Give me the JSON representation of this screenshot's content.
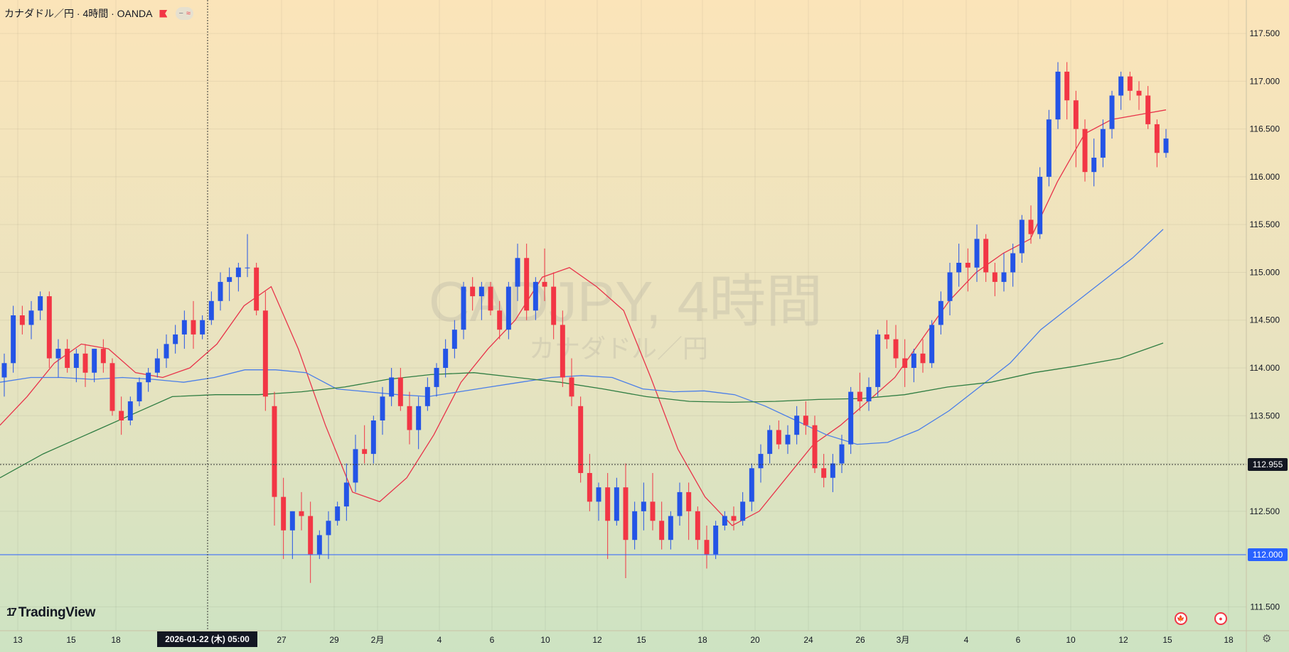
{
  "legend": {
    "title": "カナダドル／円 · 4時間 · OANDA",
    "pill_minus": "−",
    "pill_wave": "≈"
  },
  "watermark": {
    "symbol": "CADJPY, 4時間",
    "name": "カナダドル／円"
  },
  "logo": {
    "mark": "17",
    "text": "TradingView"
  },
  "crosshair": {
    "time_label": "2026-01-22 (木)   05:00",
    "price": "112.955"
  },
  "hline": {
    "price": "112.000",
    "color": "#2962ff"
  },
  "bottom_icons": {
    "canada": "🍁",
    "record": "●"
  },
  "gear_icon": "⚙",
  "colors": {
    "up": "#2454e6",
    "down": "#f23645",
    "ma_fast": "#e8334a",
    "ma_mid": "#4a7ee8",
    "ma_slow": "#2f7d42",
    "bg_top": "#fbe4b9",
    "bg_bottom": "#cde3c2"
  },
  "chart_data": {
    "type": "candlestick",
    "x_tick_labels": [
      "13",
      "15",
      "18",
      "27",
      "29",
      "2月",
      "4",
      "6",
      "10",
      "12",
      "15",
      "18",
      "20",
      "24",
      "26",
      "3月",
      "4",
      "6",
      "10",
      "12",
      "15",
      "18"
    ],
    "y_ticks": [
      "111.500",
      "112.500",
      "113.000",
      "113.500",
      "114.000",
      "114.500",
      "115.000",
      "115.500",
      "116.000",
      "116.500",
      "117.000",
      "117.500"
    ],
    "y_range": [
      111.25,
      117.85
    ],
    "series": [
      {
        "name": "MA fast",
        "color": "#e8334a",
        "values": [
          113.4,
          113.7,
          114.05,
          114.25,
          114.2,
          113.95,
          113.9,
          114.0,
          114.25,
          114.65,
          114.85,
          114.2,
          113.4,
          112.7,
          112.6,
          112.85,
          113.3,
          113.85,
          114.2,
          114.5,
          114.95,
          115.05,
          114.85,
          114.6,
          113.9,
          113.15,
          112.65,
          112.35,
          112.5,
          112.85,
          113.2,
          113.4,
          113.65,
          113.9,
          114.3,
          114.7,
          115.0,
          115.2,
          115.35,
          115.95,
          116.45,
          116.6,
          116.65,
          116.7
        ]
      },
      {
        "name": "MA mid",
        "color": "#4a7ee8",
        "values": [
          113.85,
          113.9,
          113.9,
          113.88,
          113.9,
          113.88,
          113.85,
          113.9,
          113.98,
          113.98,
          113.95,
          113.78,
          113.75,
          113.72,
          113.7,
          113.75,
          113.8,
          113.85,
          113.9,
          113.92,
          113.9,
          113.78,
          113.75,
          113.76,
          113.72,
          113.6,
          113.45,
          113.3,
          113.2,
          113.22,
          113.35,
          113.55,
          113.8,
          114.05,
          114.4,
          114.65,
          114.9,
          115.15,
          115.45
        ]
      },
      {
        "name": "MA slow",
        "color": "#2f7d42",
        "values": [
          112.85,
          113.1,
          113.3,
          113.5,
          113.7,
          113.72,
          113.72,
          113.75,
          113.8,
          113.88,
          113.93,
          113.95,
          113.9,
          113.85,
          113.78,
          113.7,
          113.65,
          113.64,
          113.65,
          113.67,
          113.68,
          113.72,
          113.8,
          113.85,
          113.95,
          114.02,
          114.1,
          114.26
        ]
      }
    ],
    "candles": [
      [
        113.9,
        114.15,
        113.7,
        114.05
      ],
      [
        114.05,
        114.65,
        113.95,
        114.55
      ],
      [
        114.55,
        114.65,
        114.35,
        114.45
      ],
      [
        114.45,
        114.7,
        114.3,
        114.6
      ],
      [
        114.6,
        114.8,
        114.5,
        114.75
      ],
      [
        114.75,
        114.8,
        114.0,
        114.1
      ],
      [
        114.1,
        114.3,
        113.9,
        114.2
      ],
      [
        114.2,
        114.3,
        113.95,
        114.0
      ],
      [
        114.0,
        114.2,
        113.85,
        114.15
      ],
      [
        114.15,
        114.25,
        113.8,
        113.95
      ],
      [
        113.95,
        114.2,
        113.85,
        114.2
      ],
      [
        114.2,
        114.3,
        113.95,
        114.05
      ],
      [
        114.05,
        114.1,
        113.5,
        113.55
      ],
      [
        113.55,
        113.7,
        113.3,
        113.45
      ],
      [
        113.45,
        113.7,
        113.4,
        113.65
      ],
      [
        113.65,
        113.9,
        113.6,
        113.85
      ],
      [
        113.85,
        114.0,
        113.75,
        113.95
      ],
      [
        113.95,
        114.2,
        113.9,
        114.1
      ],
      [
        114.1,
        114.35,
        114.0,
        114.25
      ],
      [
        114.25,
        114.45,
        114.15,
        114.35
      ],
      [
        114.35,
        114.6,
        114.2,
        114.5
      ],
      [
        114.5,
        114.7,
        114.2,
        114.35
      ],
      [
        114.35,
        114.55,
        114.3,
        114.5
      ],
      [
        114.5,
        114.8,
        114.45,
        114.7
      ],
      [
        114.7,
        115.0,
        114.6,
        114.9
      ],
      [
        114.9,
        115.05,
        114.7,
        114.95
      ],
      [
        114.95,
        115.1,
        114.8,
        115.05
      ],
      [
        115.05,
        115.4,
        114.95,
        115.05
      ],
      [
        115.05,
        115.1,
        114.55,
        114.6
      ],
      [
        114.6,
        114.8,
        113.55,
        113.7
      ],
      [
        113.6,
        113.75,
        112.35,
        112.65
      ],
      [
        112.65,
        112.85,
        112.0,
        112.3
      ],
      [
        112.3,
        112.5,
        112.0,
        112.5
      ],
      [
        112.5,
        112.7,
        112.3,
        112.45
      ],
      [
        112.45,
        112.6,
        111.75,
        112.05
      ],
      [
        112.05,
        112.3,
        112.0,
        112.25
      ],
      [
        112.25,
        112.5,
        112.0,
        112.4
      ],
      [
        112.4,
        112.6,
        112.35,
        112.55
      ],
      [
        112.55,
        113.0,
        112.4,
        112.8
      ],
      [
        112.8,
        113.3,
        112.7,
        113.15
      ],
      [
        113.15,
        113.4,
        113.0,
        113.1
      ],
      [
        113.1,
        113.5,
        113.0,
        113.45
      ],
      [
        113.45,
        113.8,
        113.3,
        113.7
      ],
      [
        113.7,
        114.0,
        113.6,
        113.9
      ],
      [
        113.9,
        114.0,
        113.55,
        113.6
      ],
      [
        113.6,
        113.75,
        113.2,
        113.35
      ],
      [
        113.35,
        113.7,
        113.15,
        113.6
      ],
      [
        113.6,
        113.9,
        113.55,
        113.8
      ],
      [
        113.8,
        114.05,
        113.7,
        114.0
      ],
      [
        114.0,
        114.3,
        113.9,
        114.2
      ],
      [
        114.2,
        114.5,
        114.1,
        114.4
      ],
      [
        114.4,
        114.9,
        114.3,
        114.85
      ],
      [
        114.85,
        114.95,
        114.6,
        114.75
      ],
      [
        114.75,
        114.9,
        114.5,
        114.85
      ],
      [
        114.85,
        114.9,
        114.55,
        114.6
      ],
      [
        114.6,
        114.7,
        114.3,
        114.4
      ],
      [
        114.4,
        114.9,
        114.3,
        114.85
      ],
      [
        114.85,
        115.3,
        114.7,
        115.15
      ],
      [
        115.15,
        115.3,
        114.5,
        114.6
      ],
      [
        114.6,
        114.95,
        114.5,
        114.9
      ],
      [
        114.9,
        115.25,
        114.7,
        114.85
      ],
      [
        114.85,
        115.0,
        114.3,
        114.45
      ],
      [
        114.45,
        114.6,
        113.8,
        113.9
      ],
      [
        113.9,
        114.1,
        113.6,
        113.7
      ],
      [
        113.6,
        113.7,
        112.8,
        112.9
      ],
      [
        112.9,
        113.1,
        112.5,
        112.6
      ],
      [
        112.6,
        112.8,
        112.4,
        112.75
      ],
      [
        112.75,
        112.9,
        112.0,
        112.4
      ],
      [
        112.4,
        112.85,
        112.35,
        112.75
      ],
      [
        112.75,
        113.0,
        111.8,
        112.2
      ],
      [
        112.2,
        112.6,
        112.1,
        112.5
      ],
      [
        112.5,
        112.8,
        112.3,
        112.6
      ],
      [
        112.6,
        112.9,
        112.3,
        112.4
      ],
      [
        112.4,
        112.6,
        112.1,
        112.2
      ],
      [
        112.2,
        112.5,
        112.1,
        112.45
      ],
      [
        112.45,
        112.8,
        112.35,
        112.7
      ],
      [
        112.7,
        112.8,
        112.2,
        112.5
      ],
      [
        112.5,
        112.55,
        112.1,
        112.2
      ],
      [
        112.2,
        112.35,
        111.9,
        112.05
      ],
      [
        112.05,
        112.4,
        112.0,
        112.35
      ],
      [
        112.35,
        112.5,
        112.3,
        112.45
      ],
      [
        112.45,
        112.55,
        112.3,
        112.4
      ],
      [
        112.4,
        112.7,
        112.35,
        112.6
      ],
      [
        112.6,
        113.0,
        112.5,
        112.95
      ],
      [
        112.95,
        113.2,
        112.8,
        113.1
      ],
      [
        113.1,
        113.4,
        113.0,
        113.35
      ],
      [
        113.35,
        113.45,
        113.15,
        113.2
      ],
      [
        113.2,
        113.4,
        113.1,
        113.3
      ],
      [
        113.3,
        113.6,
        113.2,
        113.5
      ],
      [
        113.5,
        113.65,
        113.3,
        113.4
      ],
      [
        113.4,
        113.5,
        112.9,
        112.95
      ],
      [
        112.95,
        113.1,
        112.75,
        112.85
      ],
      [
        112.85,
        113.1,
        112.7,
        113.0
      ],
      [
        113.0,
        113.3,
        112.9,
        113.2
      ],
      [
        113.2,
        113.8,
        113.1,
        113.75
      ],
      [
        113.75,
        113.95,
        113.55,
        113.65
      ],
      [
        113.65,
        113.9,
        113.55,
        113.8
      ],
      [
        113.8,
        114.4,
        113.7,
        114.35
      ],
      [
        114.35,
        114.5,
        114.2,
        114.3
      ],
      [
        114.3,
        114.45,
        114.0,
        114.1
      ],
      [
        114.1,
        114.3,
        113.8,
        114.0
      ],
      [
        114.0,
        114.2,
        113.85,
        114.15
      ],
      [
        114.15,
        114.3,
        113.95,
        114.05
      ],
      [
        114.05,
        114.5,
        114.0,
        114.45
      ],
      [
        114.45,
        114.8,
        114.35,
        114.7
      ],
      [
        114.7,
        115.1,
        114.55,
        115.0
      ],
      [
        115.0,
        115.3,
        114.85,
        115.1
      ],
      [
        115.1,
        115.25,
        114.8,
        115.05
      ],
      [
        115.05,
        115.5,
        114.9,
        115.35
      ],
      [
        115.35,
        115.4,
        114.9,
        115.0
      ],
      [
        115.0,
        115.1,
        114.75,
        114.9
      ],
      [
        114.9,
        115.2,
        114.8,
        115.0
      ],
      [
        115.0,
        115.3,
        114.85,
        115.2
      ],
      [
        115.2,
        115.6,
        115.1,
        115.55
      ],
      [
        115.55,
        115.7,
        115.3,
        115.4
      ],
      [
        115.4,
        116.1,
        115.35,
        116.0
      ],
      [
        116.0,
        116.7,
        115.9,
        116.6
      ],
      [
        116.6,
        117.2,
        116.5,
        117.1
      ],
      [
        117.1,
        117.2,
        116.6,
        116.8
      ],
      [
        116.8,
        116.9,
        116.1,
        116.5
      ],
      [
        116.5,
        116.6,
        115.95,
        116.05
      ],
      [
        116.05,
        116.4,
        115.9,
        116.2
      ],
      [
        116.2,
        116.6,
        116.1,
        116.5
      ],
      [
        116.5,
        116.9,
        116.4,
        116.85
      ],
      [
        116.85,
        117.1,
        116.7,
        117.05
      ],
      [
        117.05,
        117.1,
        116.8,
        116.9
      ],
      [
        116.9,
        117.0,
        116.7,
        116.85
      ],
      [
        116.85,
        116.95,
        116.5,
        116.55
      ],
      [
        116.55,
        116.6,
        116.1,
        116.25
      ],
      [
        116.25,
        116.5,
        116.2,
        116.4
      ]
    ]
  }
}
